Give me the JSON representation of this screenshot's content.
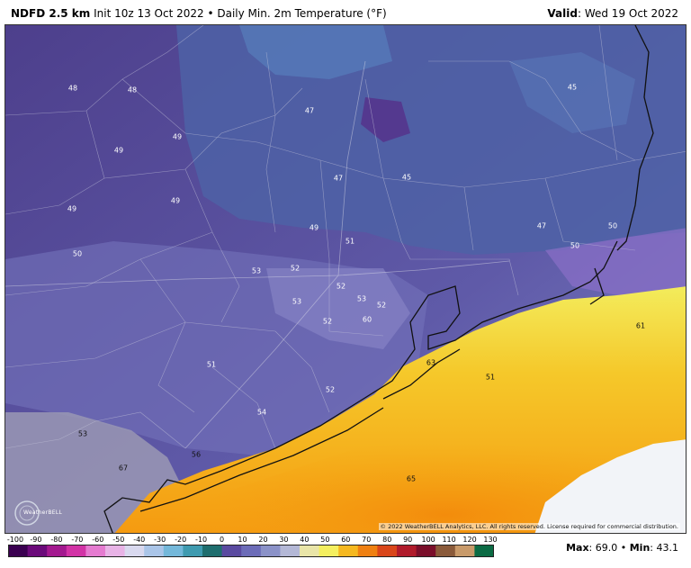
{
  "header": {
    "model": "NDFD 2.5 km",
    "init_and_product": "Init 10z 13 Oct 2022 • Daily Min. 2m Temperature (°F)",
    "valid_label": "Valid",
    "valid_value": ": Wed 19 Oct 2022"
  },
  "map": {
    "labels": [
      {
        "text": "48"
      },
      {
        "text": "48"
      },
      {
        "text": "47"
      },
      {
        "text": "45"
      },
      {
        "text": "49"
      },
      {
        "text": "49"
      },
      {
        "text": "47"
      },
      {
        "text": "45"
      },
      {
        "text": "49"
      },
      {
        "text": "49"
      },
      {
        "text": "49"
      },
      {
        "text": "51"
      },
      {
        "text": "47"
      },
      {
        "text": "50"
      },
      {
        "text": "50"
      },
      {
        "text": "50"
      },
      {
        "text": "52"
      },
      {
        "text": "53"
      },
      {
        "text": "52"
      },
      {
        "text": "53"
      },
      {
        "text": "53"
      },
      {
        "text": "52"
      },
      {
        "text": "52"
      },
      {
        "text": "60"
      },
      {
        "text": "61"
      },
      {
        "text": "63"
      },
      {
        "text": "51"
      },
      {
        "text": "51"
      },
      {
        "text": "52"
      },
      {
        "text": "54"
      },
      {
        "text": "53"
      },
      {
        "text": "56"
      },
      {
        "text": "67"
      },
      {
        "text": "65"
      }
    ],
    "copyright": "© 2022 WeatherBELL Analytics, LLC. All rights reserved. License required for commercial distribution.",
    "logo_text": "WeatherBELL",
    "colors": {
      "cold_inland": "#5a4f9a",
      "mid_inland": "#6f6db3",
      "north_blue": "#4f66a8",
      "coastal_gray": "#9999b8",
      "coast_yellow": "#f3ee6a",
      "warm_gulf": "#f6b21c",
      "hot_gulf": "#f59b10",
      "no_data": "#f2f4f8"
    }
  },
  "colorbar": {
    "ticks": [
      "-100",
      "-90",
      "-80",
      "-70",
      "-60",
      "-50",
      "-40",
      "-30",
      "-20",
      "-10",
      "0",
      "10",
      "20",
      "30",
      "40",
      "50",
      "60",
      "70",
      "80",
      "90",
      "100",
      "110",
      "120",
      "130"
    ],
    "colors": [
      "#3a0050",
      "#6b0a7a",
      "#a3198f",
      "#d233a6",
      "#e57bd0",
      "#e8b3e6",
      "#d9d9ef",
      "#aac5e8",
      "#74b8da",
      "#3f9bb0",
      "#1f6e6e",
      "#5a4aa0",
      "#6c6cb8",
      "#8b92c8",
      "#b4b8d6",
      "#e9e5a8",
      "#f4ef5f",
      "#f5b820",
      "#ef8012",
      "#d9461a",
      "#b01b2b",
      "#7a0e2a",
      "#8a5a3a",
      "#c89a6a",
      "#0b6b44"
    ],
    "max_label": "Max",
    "max_value": ": 69.0 •",
    "min_label": "Min",
    "min_value": ": 43.1"
  }
}
